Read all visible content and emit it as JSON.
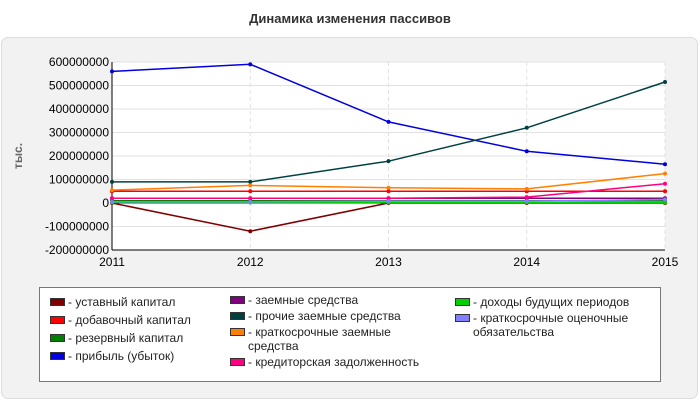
{
  "chart_data": {
    "type": "line",
    "title": "Динамика изменения пассивов",
    "ylabel": "тыс.",
    "xlabel": "",
    "x": [
      2011,
      2012,
      2013,
      2014,
      2015
    ],
    "xlim": [
      2011,
      2015
    ],
    "ylim": [
      -200000000,
      600000000
    ],
    "yticks": [
      -200000000,
      -100000000,
      0,
      100000000,
      200000000,
      300000000,
      400000000,
      500000000,
      600000000
    ],
    "ytick_labels": [
      "-200000000",
      "-100000000",
      "0",
      "100000000",
      "200000000",
      "300000000",
      "400000000",
      "500000000",
      "600000000"
    ],
    "xtick_labels": [
      "2011",
      "2012",
      "2013",
      "2014",
      "2015"
    ],
    "grid": true,
    "legend_position": "bottom",
    "series": [
      {
        "name": "- уставный капитал",
        "color": "#800000",
        "values": [
          0,
          -120000000,
          0,
          0,
          0
        ]
      },
      {
        "name": "- добавочный капитал",
        "color": "#ff0000",
        "values": [
          50000000,
          50000000,
          50000000,
          50000000,
          50000000
        ]
      },
      {
        "name": "- резервный капитал",
        "color": "#008000",
        "values": [
          10000000,
          10000000,
          10000000,
          10000000,
          10000000
        ]
      },
      {
        "name": "- прибыль (убыток)",
        "color": "#0000e0",
        "values": [
          560000000,
          590000000,
          345000000,
          220000000,
          165000000
        ]
      },
      {
        "name": "- заемные средства",
        "color": "#800080",
        "values": [
          20000000,
          20000000,
          20000000,
          20000000,
          20000000
        ]
      },
      {
        "name": "- прочие заемные средства",
        "color": "#004040",
        "values": [
          90000000,
          90000000,
          178000000,
          320000000,
          515000000
        ]
      },
      {
        "name": "- краткосрочные заемные средства",
        "color": "#ff8000",
        "values": [
          55000000,
          75000000,
          65000000,
          60000000,
          125000000
        ]
      },
      {
        "name": "- кредиторская задолженность",
        "color": "#ff0080",
        "values": [
          20000000,
          20000000,
          20000000,
          25000000,
          82000000
        ]
      },
      {
        "name": "- доходы будущих периодов",
        "color": "#00d000",
        "values": [
          2000000,
          2000000,
          2000000,
          2000000,
          2000000
        ]
      },
      {
        "name": "- краткосрочные оценочные обязательства",
        "color": "#8080ff",
        "values": [
          5000000,
          5000000,
          8000000,
          8000000,
          15000000
        ]
      }
    ]
  },
  "legend": {
    "items": [
      {
        "label": "- уставный капитал",
        "color": "#800000"
      },
      {
        "label": "- добавочный капитал",
        "color": "#ff0000"
      },
      {
        "label": "- резервный капитал",
        "color": "#008000"
      },
      {
        "label": "- прибыль (убыток)",
        "color": "#0000e0"
      },
      {
        "label": "- заемные средства",
        "color": "#800080"
      },
      {
        "label": "- прочие заемные средства",
        "color": "#004040"
      },
      {
        "label": "- краткосрочные заемные средства",
        "color": "#ff8000"
      },
      {
        "label": "- кредиторская задолженность",
        "color": "#ff0080"
      },
      {
        "label": "- доходы будущих периодов",
        "color": "#00d000"
      },
      {
        "label": "- краткосрочные оценочные обязательства",
        "color": "#8080ff"
      }
    ]
  }
}
